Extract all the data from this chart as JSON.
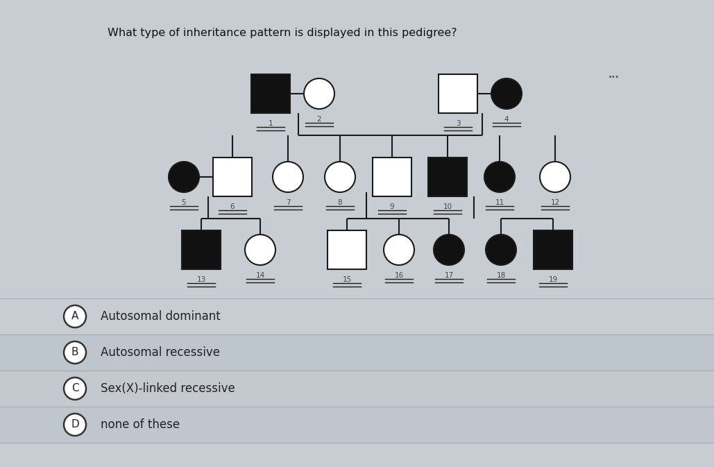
{
  "title": "What type of inheritance pattern is displayed in this pedigree?",
  "title_fontsize": 11.5,
  "bg_color": "#c8cdd4",
  "answer_bg_color": "#bfc5cc",
  "line_color": "#1a1a1a",
  "filled_color": "#111111",
  "empty_color": "#ffffff",
  "options": [
    {
      "label": "A",
      "text": "Autosomal dominant"
    },
    {
      "label": "B",
      "text": "Autosomal recessive"
    },
    {
      "label": "C",
      "text": "Sex(X)-linked recessive"
    },
    {
      "label": "D",
      "text": "none of these"
    }
  ],
  "dots_text": "..."
}
